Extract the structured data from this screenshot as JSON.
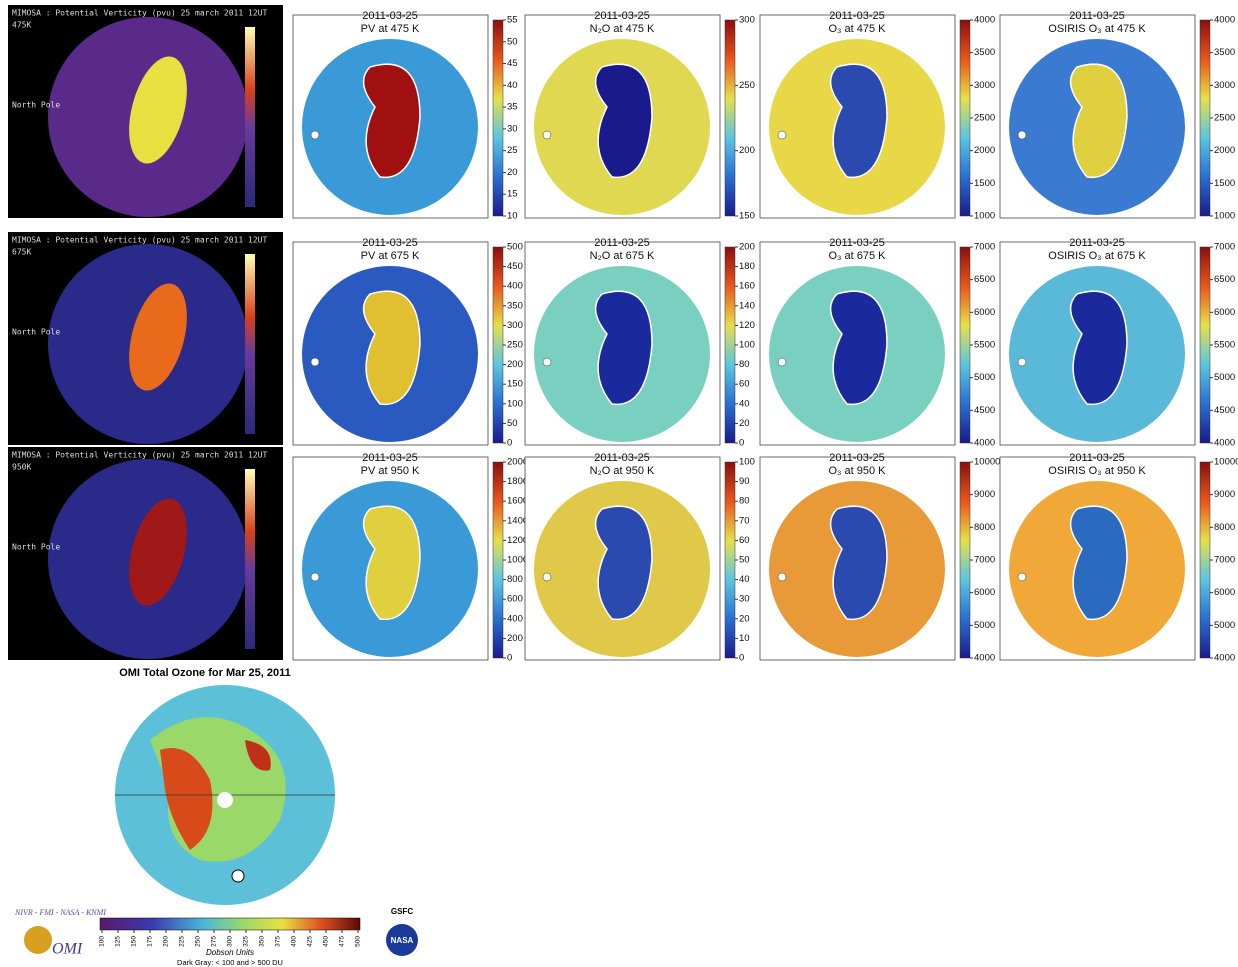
{
  "rows": [
    {
      "mimosa": {
        "header": "MIMOSA : Potential Verticity (pvu)   25 march 2011   12UT",
        "level": "475K",
        "pole_label": "North Pole"
      },
      "panels": [
        {
          "date": "2011-03-25",
          "title": "PV at 475 K",
          "ticks": [
            10,
            15,
            20,
            25,
            30,
            35,
            40,
            45,
            50,
            55
          ]
        },
        {
          "date": "2011-03-25",
          "title": "N₂O at 475 K",
          "ticks": [
            150,
            200,
            250,
            300
          ]
        },
        {
          "date": "2011-03-25",
          "title": "O₃ at 475 K",
          "ticks": [
            1000,
            1500,
            2000,
            2500,
            3000,
            3500,
            4000
          ]
        },
        {
          "date": "2011-03-25",
          "title": "OSIRIS O₃ at 475 K",
          "ticks": [
            1000,
            1500,
            2000,
            2500,
            3000,
            3500,
            4000
          ]
        }
      ]
    },
    {
      "mimosa": {
        "header": "MIMOSA : Potential Verticity (pvu)   25 march 2011   12UT",
        "level": "675K",
        "pole_label": "North Pole"
      },
      "panels": [
        {
          "date": "2011-03-25",
          "title": "PV at 675 K",
          "ticks": [
            0,
            50,
            100,
            150,
            200,
            250,
            300,
            350,
            400,
            450,
            500
          ]
        },
        {
          "date": "2011-03-25",
          "title": "N₂O at 675 K",
          "ticks": [
            0,
            20,
            40,
            60,
            80,
            100,
            120,
            140,
            160,
            180,
            200
          ]
        },
        {
          "date": "2011-03-25",
          "title": "O₃ at 675 K",
          "ticks": [
            4000,
            4500,
            5000,
            5500,
            6000,
            6500,
            7000
          ]
        },
        {
          "date": "2011-03-25",
          "title": "OSIRIS O₃ at 675 K",
          "ticks": [
            4000,
            4500,
            5000,
            5500,
            6000,
            6500,
            7000
          ]
        }
      ]
    },
    {
      "mimosa": {
        "header": "MIMOSA : Potential Verticity (pvu)   25 march 2011   12UT",
        "level": "950K",
        "pole_label": "North Pole"
      },
      "panels": [
        {
          "date": "2011-03-25",
          "title": "PV at 950 K",
          "ticks": [
            0,
            200,
            400,
            600,
            800,
            1000,
            1200,
            1400,
            1600,
            1800,
            2000
          ]
        },
        {
          "date": "2011-03-25",
          "title": "N₂O at 950 K",
          "ticks": [
            0,
            10,
            20,
            30,
            40,
            50,
            60,
            70,
            80,
            90,
            100
          ]
        },
        {
          "date": "2011-03-25",
          "title": "O₃ at 950 K",
          "ticks": [
            4000,
            5000,
            6000,
            7000,
            8000,
            9000,
            10000
          ]
        },
        {
          "date": "2011-03-25",
          "title": "OSIRIS O₃ at 950 K",
          "ticks": [
            4000,
            5000,
            6000,
            7000,
            8000,
            9000,
            10000
          ]
        }
      ]
    }
  ],
  "omi": {
    "title": "OMI Total Ozone for Mar 25, 2011",
    "credit": "NIVR - FMI - NASA - KNMI",
    "logo": "OMI",
    "gsfc": "GSFC",
    "nasa": "NASA",
    "units": "Dobson Units",
    "note": "Dark Gray: < 100 and > 500 DU",
    "ticks": [
      100,
      125,
      150,
      175,
      200,
      225,
      250,
      275,
      300,
      325,
      350,
      375,
      400,
      425,
      450,
      475,
      500
    ]
  }
}
